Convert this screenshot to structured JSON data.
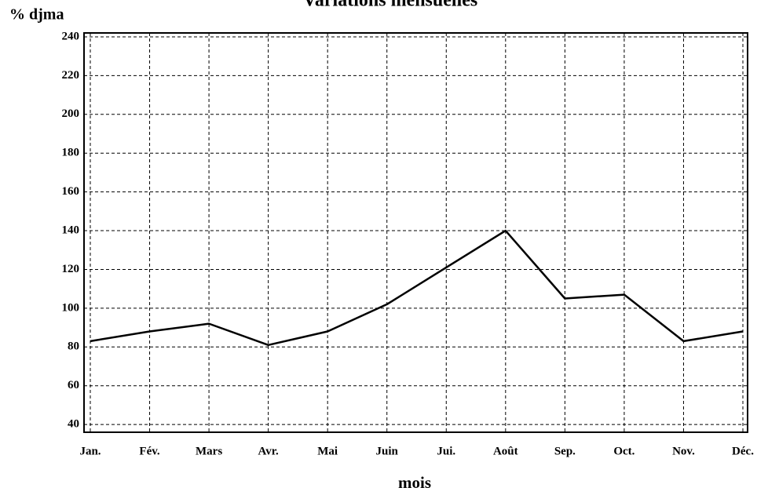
{
  "chart_data": {
    "type": "line",
    "title": "Variations mensuelles",
    "y_label": "% djma",
    "x_label": "mois",
    "categories": [
      "Jan.",
      "Fév.",
      "Mars",
      "Avr.",
      "Mai",
      "Juin",
      "Jui.",
      "Août",
      "Sep.",
      "Oct.",
      "Nov.",
      "Déc."
    ],
    "values": [
      83,
      88,
      92,
      81,
      88,
      102,
      121,
      140,
      105,
      107,
      83,
      88
    ],
    "color": "#000000",
    "ylim": [
      36,
      242
    ],
    "yticks": [
      40,
      60,
      80,
      100,
      120,
      140,
      160,
      180,
      200,
      220,
      240
    ],
    "grid": true
  }
}
